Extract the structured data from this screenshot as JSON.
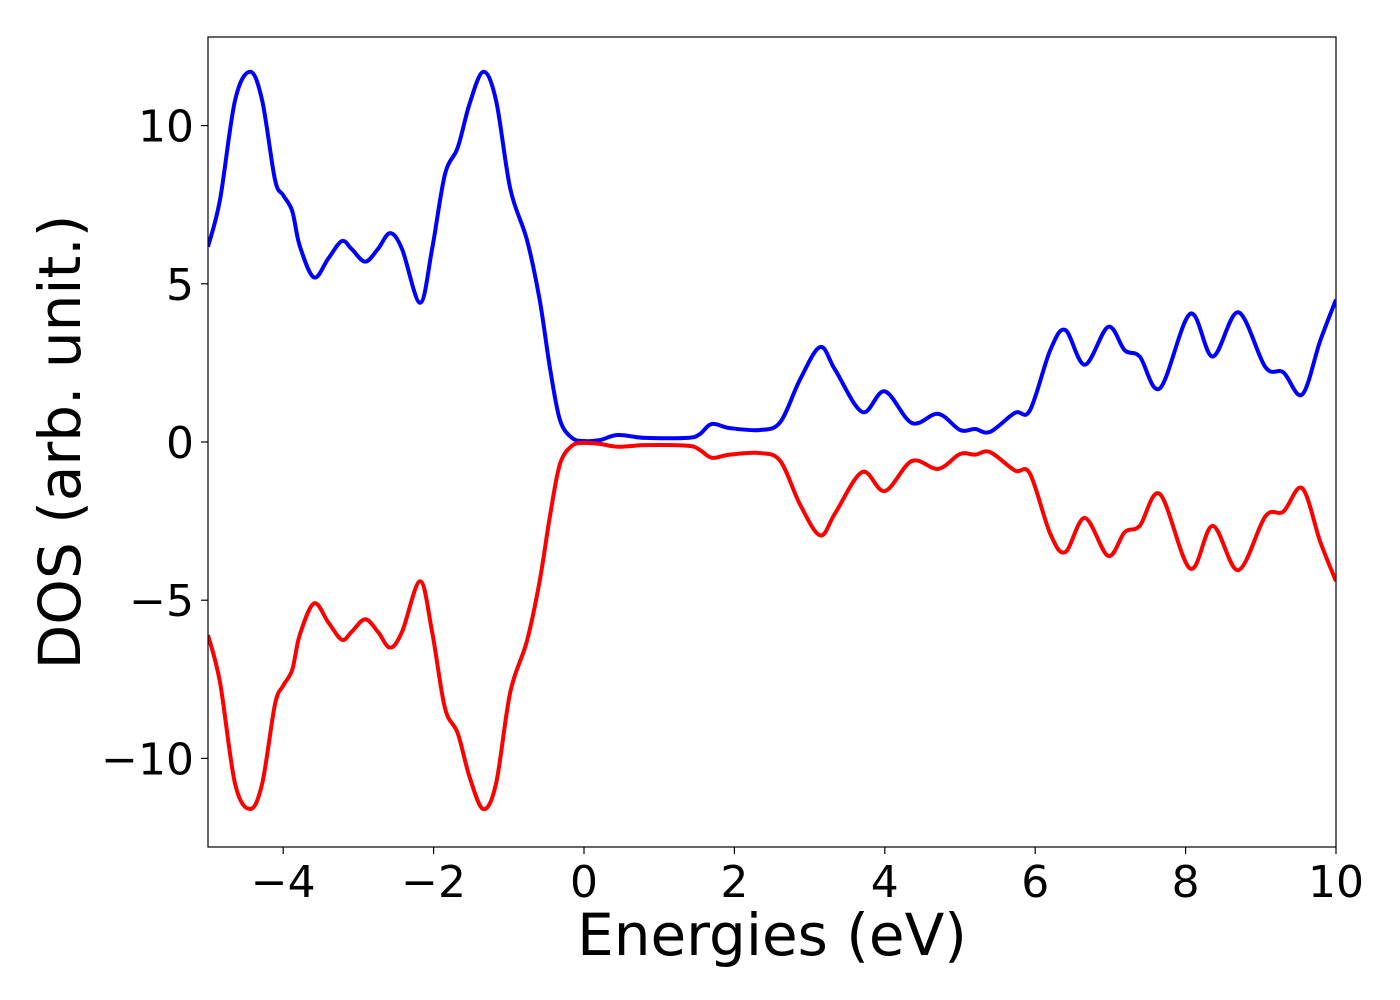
{
  "chart_data": {
    "type": "line",
    "xlabel": "Energies (eV)",
    "ylabel": "DOS (arb. unit.)",
    "xlim": [
      -5,
      10
    ],
    "ylim": [
      -12.8,
      12.8
    ],
    "xticks": [
      {
        "value": -4,
        "label": "−4"
      },
      {
        "value": -2,
        "label": "−2"
      },
      0,
      2,
      4,
      6,
      8,
      10
    ],
    "yticks": [
      {
        "value": -10,
        "label": "−10"
      },
      {
        "value": -5,
        "label": "−5"
      },
      0,
      5,
      10
    ],
    "grid": false,
    "x": [
      -5,
      -4.84,
      -4.64,
      -4.44,
      -4.28,
      -4.11,
      -4.0,
      -3.88,
      -3.78,
      -3.59,
      -3.4,
      -3.22,
      -3.09,
      -2.91,
      -2.74,
      -2.58,
      -2.42,
      -2.18,
      -2.02,
      -1.85,
      -1.68,
      -1.52,
      -1.34,
      -1.17,
      -0.98,
      -0.76,
      -0.59,
      -0.45,
      -0.32,
      -0.16,
      0,
      0.21,
      0.45,
      0.81,
      1.38,
      1.54,
      1.7,
      1.94,
      2.34,
      2.61,
      2.87,
      3.14,
      3.34,
      3.7,
      4.0,
      4.36,
      4.71,
      5.0,
      5.2,
      5.4,
      5.73,
      5.93,
      6.2,
      6.4,
      6.66,
      6.97,
      7.19,
      7.39,
      7.66,
      8.06,
      8.36,
      8.7,
      9.06,
      9.3,
      9.55,
      9.79,
      10.0
    ],
    "series": [
      {
        "color": "#0000ff",
        "values": [
          6.17,
          7.66,
          10.8,
          11.7,
          10.8,
          8.3,
          7.8,
          7.3,
          6.2,
          5.2,
          5.8,
          6.35,
          6.1,
          5.7,
          6.1,
          6.6,
          6.1,
          4.4,
          6.1,
          8.45,
          9.3,
          10.7,
          11.7,
          10.8,
          8.0,
          6.4,
          4.5,
          2.3,
          0.7,
          0.13,
          0.03,
          0.06,
          0.22,
          0.13,
          0.13,
          0.25,
          0.57,
          0.44,
          0.38,
          0.63,
          1.96,
          3.0,
          2.28,
          0.95,
          1.6,
          0.6,
          0.89,
          0.38,
          0.41,
          0.32,
          0.92,
          1.0,
          2.9,
          3.54,
          2.44,
          3.64,
          2.9,
          2.7,
          1.7,
          4.05,
          2.7,
          4.1,
          2.37,
          2.2,
          1.5,
          3.2,
          4.5
        ]
      },
      {
        "color": "#ff0000",
        "values": [
          -6.1,
          -7.6,
          -10.8,
          -11.6,
          -10.8,
          -8.3,
          -7.7,
          -7.2,
          -6.1,
          -5.1,
          -5.7,
          -6.25,
          -6.0,
          -5.6,
          -6.0,
          -6.5,
          -6.0,
          -4.4,
          -6.0,
          -8.4,
          -9.2,
          -10.6,
          -11.6,
          -10.8,
          -7.9,
          -6.3,
          -4.4,
          -2.3,
          -0.7,
          -0.12,
          -0.03,
          -0.06,
          -0.15,
          -0.1,
          -0.12,
          -0.25,
          -0.5,
          -0.4,
          -0.35,
          -0.6,
          -1.96,
          -2.95,
          -2.25,
          -0.95,
          -1.55,
          -0.6,
          -0.85,
          -0.38,
          -0.4,
          -0.32,
          -0.9,
          -1.0,
          -2.9,
          -3.48,
          -2.4,
          -3.6,
          -2.85,
          -2.65,
          -1.65,
          -4.0,
          -2.65,
          -4.05,
          -2.35,
          -2.2,
          -1.46,
          -3.15,
          -4.4
        ]
      }
    ]
  }
}
